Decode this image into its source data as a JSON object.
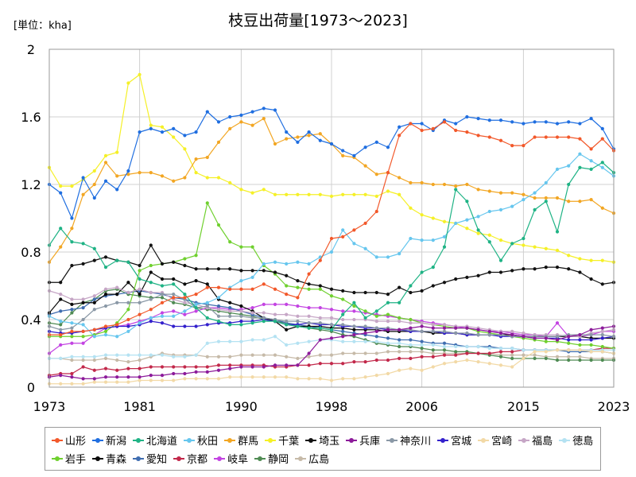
{
  "chart_data": {
    "type": "line",
    "title": "枝豆出荷量[1973～2023]",
    "unit_label": "[単位：kha]",
    "xlabel": "",
    "ylabel": "",
    "xlim": [
      1973,
      2023
    ],
    "ylim": [
      0,
      2
    ],
    "yticks": [
      0,
      0.4,
      0.8,
      1.2,
      1.6,
      2
    ],
    "ytick_labels": [
      "0",
      "0.4",
      "0.8",
      "1.2",
      "1.6",
      "2"
    ],
    "xticks": [
      1973,
      1981,
      1990,
      1998,
      2006,
      2015,
      2023
    ],
    "xtick_labels": [
      "1973",
      "1981",
      "1990",
      "1998",
      "2006",
      "2015",
      "2023"
    ],
    "grid": true,
    "legend": "bottom",
    "x": [
      1973,
      1974,
      1975,
      1976,
      1977,
      1978,
      1979,
      1980,
      1981,
      1982,
      1983,
      1984,
      1985,
      1986,
      1987,
      1988,
      1989,
      1990,
      1991,
      1992,
      1993,
      1994,
      1995,
      1996,
      1997,
      1998,
      1999,
      2000,
      2001,
      2002,
      2003,
      2004,
      2005,
      2006,
      2007,
      2008,
      2009,
      2010,
      2011,
      2012,
      2013,
      2014,
      2015,
      2016,
      2017,
      2018,
      2019,
      2020,
      2021,
      2022,
      2023
    ],
    "series": [
      {
        "name": "山形",
        "color": "#f2582a",
        "values": [
          0.31,
          0.31,
          0.33,
          0.33,
          0.34,
          0.36,
          0.37,
          0.4,
          0.43,
          0.46,
          0.5,
          0.53,
          0.53,
          0.55,
          0.59,
          0.59,
          0.58,
          0.58,
          0.58,
          0.61,
          0.58,
          0.55,
          0.53,
          0.67,
          0.75,
          0.88,
          0.89,
          0.93,
          0.97,
          1.04,
          1.27,
          1.49,
          1.56,
          1.52,
          1.53,
          1.57,
          1.52,
          1.51,
          1.49,
          1.48,
          1.46,
          1.43,
          1.43,
          1.48,
          1.48,
          1.48,
          1.48,
          1.47,
          1.41,
          1.47,
          1.4
        ]
      },
      {
        "name": "新潟",
        "color": "#1f6ee0",
        "values": [
          1.2,
          1.15,
          1.0,
          1.24,
          1.12,
          1.22,
          1.17,
          1.28,
          1.51,
          1.53,
          1.51,
          1.53,
          1.49,
          1.51,
          1.63,
          1.57,
          1.6,
          1.61,
          1.63,
          1.65,
          1.64,
          1.51,
          1.45,
          1.51,
          1.46,
          1.44,
          1.4,
          1.37,
          1.42,
          1.45,
          1.42,
          1.54,
          1.56,
          1.56,
          1.52,
          1.58,
          1.56,
          1.6,
          1.59,
          1.58,
          1.58,
          1.57,
          1.56,
          1.57,
          1.57,
          1.56,
          1.57,
          1.56,
          1.59,
          1.53,
          1.41
        ]
      },
      {
        "name": "北海道",
        "color": "#1fb385",
        "values": [
          0.84,
          0.94,
          0.86,
          0.85,
          0.82,
          0.71,
          0.75,
          0.74,
          0.64,
          0.62,
          0.6,
          0.61,
          0.55,
          0.47,
          0.41,
          0.39,
          0.37,
          0.37,
          0.38,
          0.39,
          0.39,
          0.37,
          0.36,
          0.35,
          0.35,
          0.34,
          0.43,
          0.5,
          0.41,
          0.45,
          0.5,
          0.5,
          0.6,
          0.68,
          0.71,
          0.83,
          1.17,
          1.1,
          0.93,
          0.86,
          0.75,
          0.85,
          0.88,
          1.05,
          1.1,
          0.92,
          1.2,
          1.3,
          1.29,
          1.33,
          1.27
        ]
      },
      {
        "name": "秋田",
        "color": "#66c6ee",
        "values": [
          0.42,
          0.39,
          0.38,
          0.37,
          0.3,
          0.31,
          0.3,
          0.33,
          0.38,
          0.41,
          0.42,
          0.42,
          0.45,
          0.49,
          0.5,
          0.53,
          0.59,
          0.63,
          0.65,
          0.73,
          0.74,
          0.73,
          0.74,
          0.73,
          0.77,
          0.8,
          0.93,
          0.85,
          0.82,
          0.77,
          0.77,
          0.79,
          0.88,
          0.87,
          0.87,
          0.89,
          0.97,
          0.99,
          1.01,
          1.04,
          1.05,
          1.07,
          1.11,
          1.15,
          1.21,
          1.29,
          1.31,
          1.38,
          1.34,
          1.3,
          1.25
        ]
      },
      {
        "name": "群馬",
        "color": "#f2a623",
        "values": [
          0.74,
          0.83,
          0.94,
          1.14,
          1.2,
          1.33,
          1.25,
          1.26,
          1.27,
          1.27,
          1.25,
          1.22,
          1.24,
          1.35,
          1.36,
          1.45,
          1.53,
          1.57,
          1.55,
          1.59,
          1.44,
          1.47,
          1.48,
          1.49,
          1.5,
          1.44,
          1.37,
          1.36,
          1.31,
          1.26,
          1.27,
          1.24,
          1.21,
          1.21,
          1.2,
          1.2,
          1.19,
          1.2,
          1.17,
          1.16,
          1.15,
          1.15,
          1.14,
          1.12,
          1.12,
          1.12,
          1.1,
          1.1,
          1.11,
          1.06,
          1.03
        ]
      },
      {
        "name": "千葉",
        "color": "#f5f027",
        "values": [
          1.3,
          1.19,
          1.19,
          1.23,
          1.28,
          1.37,
          1.39,
          1.8,
          1.85,
          1.55,
          1.54,
          1.48,
          1.41,
          1.27,
          1.24,
          1.24,
          1.21,
          1.17,
          1.15,
          1.17,
          1.14,
          1.14,
          1.14,
          1.14,
          1.14,
          1.13,
          1.14,
          1.14,
          1.14,
          1.13,
          1.16,
          1.14,
          1.06,
          1.02,
          1.0,
          0.98,
          0.97,
          0.94,
          0.91,
          0.9,
          0.87,
          0.85,
          0.84,
          0.83,
          0.82,
          0.81,
          0.78,
          0.76,
          0.75,
          0.75,
          0.74
        ]
      },
      {
        "name": "埼玉",
        "color": "#111111",
        "values": [
          0.62,
          0.62,
          0.72,
          0.73,
          0.75,
          0.77,
          0.75,
          0.74,
          0.72,
          0.84,
          0.73,
          0.74,
          0.72,
          0.7,
          0.7,
          0.7,
          0.7,
          0.69,
          0.69,
          0.69,
          0.68,
          0.66,
          0.63,
          0.61,
          0.6,
          0.58,
          0.57,
          0.56,
          0.56,
          0.56,
          0.55,
          0.59,
          0.56,
          0.57,
          0.6,
          0.62,
          0.64,
          0.65,
          0.66,
          0.68,
          0.68,
          0.69,
          0.7,
          0.7,
          0.71,
          0.71,
          0.7,
          0.68,
          0.64,
          0.61,
          0.62
        ]
      },
      {
        "name": "兵庫",
        "color": "#8c1a9a",
        "values": [
          0.06,
          0.07,
          0.06,
          0.05,
          0.05,
          0.06,
          0.06,
          0.06,
          0.06,
          0.07,
          0.07,
          0.08,
          0.08,
          0.09,
          0.09,
          0.1,
          0.11,
          0.12,
          0.12,
          0.12,
          0.13,
          0.13,
          0.13,
          0.2,
          0.28,
          0.29,
          0.3,
          0.31,
          0.32,
          0.33,
          0.34,
          0.34,
          0.35,
          0.36,
          0.35,
          0.35,
          0.35,
          0.35,
          0.34,
          0.33,
          0.32,
          0.31,
          0.3,
          0.29,
          0.29,
          0.28,
          0.3,
          0.31,
          0.34,
          0.35,
          0.36
        ]
      },
      {
        "name": "神奈川",
        "color": "#8a98a6",
        "values": [
          0.36,
          0.34,
          0.35,
          0.4,
          0.46,
          0.48,
          0.5,
          0.5,
          0.5,
          0.52,
          0.55,
          0.55,
          0.52,
          0.47,
          0.48,
          0.42,
          0.42,
          0.42,
          0.41,
          0.41,
          0.4,
          0.39,
          0.39,
          0.38,
          0.38,
          0.37,
          0.37,
          0.36,
          0.36,
          0.35,
          0.35,
          0.34,
          0.34,
          0.33,
          0.33,
          0.33,
          0.32,
          0.32,
          0.31,
          0.31,
          0.31,
          0.3,
          0.3,
          0.3,
          0.3,
          0.3,
          0.31,
          0.31,
          0.31,
          0.31,
          0.3
        ]
      },
      {
        "name": "宮城",
        "color": "#3320cc",
        "values": [
          0.33,
          0.32,
          0.32,
          0.33,
          0.34,
          0.35,
          0.36,
          0.36,
          0.37,
          0.39,
          0.38,
          0.36,
          0.36,
          0.36,
          0.37,
          0.38,
          0.38,
          0.39,
          0.39,
          0.4,
          0.39,
          0.37,
          0.37,
          0.38,
          0.37,
          0.37,
          0.36,
          0.36,
          0.35,
          0.35,
          0.34,
          0.34,
          0.33,
          0.33,
          0.33,
          0.32,
          0.32,
          0.31,
          0.31,
          0.31,
          0.3,
          0.3,
          0.3,
          0.29,
          0.29,
          0.29,
          0.28,
          0.28,
          0.28,
          0.29,
          0.3
        ]
      },
      {
        "name": "宮崎",
        "color": "#f2d9a6",
        "values": [
          0.02,
          0.02,
          0.02,
          0.02,
          0.03,
          0.03,
          0.03,
          0.03,
          0.04,
          0.04,
          0.04,
          0.04,
          0.05,
          0.05,
          0.05,
          0.05,
          0.06,
          0.06,
          0.06,
          0.06,
          0.06,
          0.06,
          0.05,
          0.05,
          0.05,
          0.04,
          0.05,
          0.05,
          0.06,
          0.07,
          0.08,
          0.1,
          0.11,
          0.1,
          0.12,
          0.14,
          0.15,
          0.16,
          0.15,
          0.14,
          0.13,
          0.12,
          0.17,
          0.21,
          0.21,
          0.22,
          0.22,
          0.22,
          0.21,
          0.21,
          0.2
        ]
      },
      {
        "name": "福島",
        "color": "#c6a6c6",
        "values": [
          0.57,
          0.55,
          0.52,
          0.52,
          0.54,
          0.58,
          0.59,
          0.56,
          0.58,
          0.56,
          0.56,
          0.52,
          0.5,
          0.49,
          0.47,
          0.46,
          0.45,
          0.45,
          0.44,
          0.44,
          0.43,
          0.43,
          0.42,
          0.42,
          0.41,
          0.41,
          0.4,
          0.4,
          0.4,
          0.39,
          0.39,
          0.39,
          0.38,
          0.38,
          0.37,
          0.37,
          0.36,
          0.36,
          0.35,
          0.34,
          0.33,
          0.33,
          0.32,
          0.31,
          0.31,
          0.31,
          0.3,
          0.3,
          0.32,
          0.33,
          0.34
        ]
      },
      {
        "name": "徳島",
        "color": "#b4e2f2",
        "values": [
          0.17,
          0.17,
          0.18,
          0.18,
          0.18,
          0.19,
          0.19,
          0.19,
          0.19,
          0.19,
          0.19,
          0.18,
          0.18,
          0.19,
          0.26,
          0.27,
          0.27,
          0.27,
          0.28,
          0.28,
          0.3,
          0.25,
          0.26,
          0.27,
          0.28,
          0.28,
          0.27,
          0.27,
          0.27,
          0.27,
          0.26,
          0.26,
          0.25,
          0.25,
          0.25,
          0.24,
          0.24,
          0.24,
          0.24,
          0.23,
          0.23,
          0.23,
          0.22,
          0.22,
          0.22,
          0.22,
          0.22,
          0.22,
          0.22,
          0.22,
          0.22
        ]
      },
      {
        "name": "岩手",
        "color": "#6fd02e",
        "values": [
          0.3,
          0.3,
          0.3,
          0.3,
          0.31,
          0.33,
          0.38,
          0.46,
          0.69,
          0.72,
          0.73,
          0.74,
          0.76,
          0.78,
          1.09,
          0.96,
          0.86,
          0.83,
          0.83,
          0.72,
          0.67,
          0.6,
          0.59,
          0.58,
          0.58,
          0.54,
          0.52,
          0.48,
          0.45,
          0.42,
          0.43,
          0.41,
          0.4,
          0.38,
          0.37,
          0.36,
          0.35,
          0.35,
          0.33,
          0.32,
          0.31,
          0.3,
          0.29,
          0.28,
          0.27,
          0.27,
          0.26,
          0.25,
          0.25,
          0.24,
          0.23
        ]
      },
      {
        "name": "青森",
        "color": "#0a0a0a",
        "values": [
          0.44,
          0.52,
          0.49,
          0.5,
          0.5,
          0.55,
          0.55,
          0.62,
          0.55,
          0.68,
          0.64,
          0.64,
          0.61,
          0.63,
          0.61,
          0.52,
          0.5,
          0.48,
          0.45,
          0.41,
          0.39,
          0.34,
          0.36,
          0.36,
          0.36,
          0.35,
          0.35,
          0.34,
          0.34,
          0.34,
          0.33,
          0.33,
          0.33,
          0.33,
          0.32,
          0.32,
          0.32,
          0.31,
          0.31,
          0.31,
          0.31,
          0.31,
          0.3,
          0.3,
          0.3,
          0.3,
          0.3,
          0.3,
          0.29,
          0.29,
          0.29
        ]
      },
      {
        "name": "愛知",
        "color": "#3f6db0",
        "values": [
          0.43,
          0.45,
          0.46,
          0.47,
          0.52,
          0.54,
          0.55,
          0.56,
          0.57,
          0.56,
          0.55,
          0.53,
          0.52,
          0.5,
          0.49,
          0.48,
          0.47,
          0.45,
          0.43,
          0.41,
          0.4,
          0.38,
          0.37,
          0.36,
          0.35,
          0.34,
          0.33,
          0.32,
          0.31,
          0.3,
          0.29,
          0.28,
          0.28,
          0.27,
          0.26,
          0.26,
          0.25,
          0.24,
          0.24,
          0.24,
          0.23,
          0.23,
          0.22,
          0.22,
          0.22,
          0.22,
          0.21,
          0.21,
          0.21,
          0.21,
          0.2
        ]
      },
      {
        "name": "京都",
        "color": "#c2284a",
        "values": [
          0.07,
          0.08,
          0.08,
          0.12,
          0.1,
          0.11,
          0.1,
          0.11,
          0.11,
          0.12,
          0.12,
          0.12,
          0.12,
          0.12,
          0.12,
          0.13,
          0.13,
          0.13,
          0.13,
          0.13,
          0.12,
          0.12,
          0.13,
          0.13,
          0.14,
          0.14,
          0.14,
          0.15,
          0.15,
          0.16,
          0.16,
          0.17,
          0.17,
          0.18,
          0.18,
          0.19,
          0.19,
          0.2,
          0.2,
          0.2,
          0.21,
          0.21,
          0.22,
          0.22,
          0.22,
          0.22,
          0.22,
          0.22,
          0.22,
          0.23,
          0.23
        ]
      },
      {
        "name": "岐阜",
        "color": "#c343e2",
        "values": [
          0.2,
          0.25,
          0.26,
          0.26,
          0.31,
          0.35,
          0.36,
          0.37,
          0.39,
          0.41,
          0.44,
          0.45,
          0.43,
          0.45,
          0.47,
          0.47,
          0.46,
          0.46,
          0.47,
          0.49,
          0.49,
          0.49,
          0.48,
          0.47,
          0.47,
          0.46,
          0.45,
          0.45,
          0.44,
          0.43,
          0.42,
          0.41,
          0.4,
          0.39,
          0.38,
          0.37,
          0.36,
          0.35,
          0.34,
          0.33,
          0.33,
          0.32,
          0.31,
          0.31,
          0.3,
          0.38,
          0.3,
          0.3,
          0.31,
          0.33,
          0.33
        ]
      },
      {
        "name": "静岡",
        "color": "#4f8b53",
        "values": [
          0.38,
          0.37,
          0.44,
          0.5,
          0.52,
          0.57,
          0.58,
          0.55,
          0.54,
          0.53,
          0.53,
          0.5,
          0.49,
          0.47,
          0.46,
          0.45,
          0.44,
          0.43,
          0.42,
          0.4,
          0.39,
          0.38,
          0.36,
          0.35,
          0.34,
          0.33,
          0.31,
          0.3,
          0.28,
          0.26,
          0.25,
          0.24,
          0.24,
          0.23,
          0.22,
          0.22,
          0.21,
          0.21,
          0.2,
          0.19,
          0.18,
          0.17,
          0.17,
          0.17,
          0.17,
          0.16,
          0.16,
          0.16,
          0.16,
          0.16,
          0.16
        ]
      },
      {
        "name": "広島",
        "color": "#c6baa8",
        "values": [
          0.17,
          0.17,
          0.16,
          0.16,
          0.16,
          0.17,
          0.16,
          0.15,
          0.16,
          0.18,
          0.2,
          0.19,
          0.19,
          0.19,
          0.18,
          0.18,
          0.18,
          0.19,
          0.19,
          0.19,
          0.19,
          0.18,
          0.17,
          0.18,
          0.19,
          0.19,
          0.2,
          0.2,
          0.2,
          0.2,
          0.21,
          0.21,
          0.21,
          0.21,
          0.2,
          0.2,
          0.2,
          0.2,
          0.2,
          0.2,
          0.19,
          0.19,
          0.19,
          0.19,
          0.18,
          0.18,
          0.18,
          0.18,
          0.17,
          0.17,
          0.17
        ]
      }
    ]
  }
}
